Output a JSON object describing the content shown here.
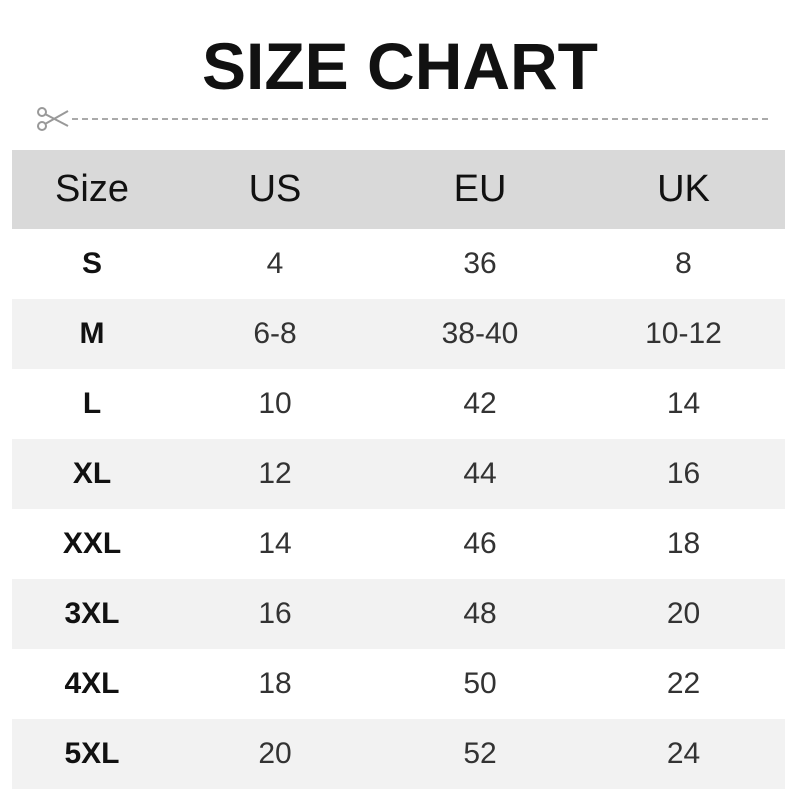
{
  "title": "SIZE CHART",
  "icons": {
    "cut_line": "scissors-icon"
  },
  "headers": [
    "Size",
    "US",
    "EU",
    "UK"
  ],
  "rows": [
    [
      "S",
      "4",
      "36",
      "8"
    ],
    [
      "M",
      "6-8",
      "38-40",
      "10-12"
    ],
    [
      "L",
      "10",
      "42",
      "14"
    ],
    [
      "XL",
      "12",
      "44",
      "16"
    ],
    [
      "XXL",
      "14",
      "46",
      "18"
    ],
    [
      "3XL",
      "16",
      "48",
      "20"
    ],
    [
      "4XL",
      "18",
      "50",
      "22"
    ],
    [
      "5XL",
      "20",
      "52",
      "24"
    ]
  ],
  "colors": {
    "header_bg": "#d9d9d9",
    "alt_row_bg": "#f2f2f2"
  }
}
